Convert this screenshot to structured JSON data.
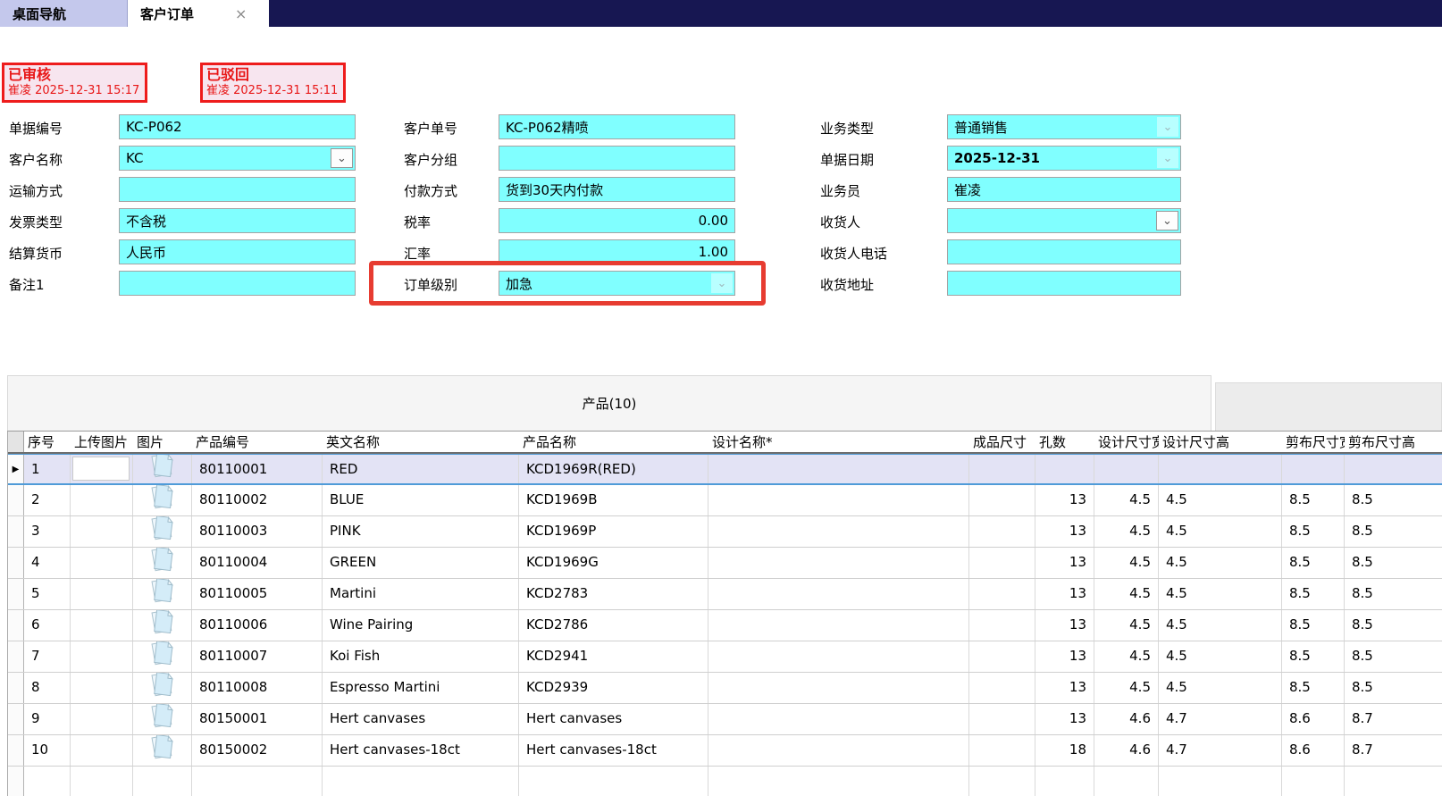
{
  "tabs": {
    "close_icon": "×",
    "items": [
      {
        "label": "桌面导航",
        "active": false
      },
      {
        "label": "客户订单",
        "active": true
      }
    ]
  },
  "stamps": [
    {
      "title": "已审核",
      "meta": "崔凌 2025-12-31 15:17"
    },
    {
      "title": "已驳回",
      "meta": "崔凌 2025-12-31 15:11"
    }
  ],
  "form": {
    "col1": [
      {
        "name": "doc-number",
        "label": "单据编号",
        "value": "KC-P062",
        "type": "input"
      },
      {
        "name": "customer-name",
        "label": "客户名称",
        "value": "KC",
        "type": "combo"
      },
      {
        "name": "transport-method",
        "label": "运输方式",
        "value": "",
        "type": "input"
      },
      {
        "name": "invoice-type",
        "label": "发票类型",
        "value": "不含税",
        "type": "input"
      },
      {
        "name": "settlement-currency",
        "label": "结算货币",
        "value": "人民币",
        "type": "input"
      },
      {
        "name": "remark-1",
        "label": "备注1",
        "value": "",
        "type": "input"
      }
    ],
    "col2": [
      {
        "name": "customer-order-no",
        "label": "客户单号",
        "value": "KC-P062精喷",
        "type": "input"
      },
      {
        "name": "customer-group",
        "label": "客户分组",
        "value": "",
        "type": "input"
      },
      {
        "name": "payment-method",
        "label": "付款方式",
        "value": "货到30天内付款",
        "type": "input"
      },
      {
        "name": "tax-rate",
        "label": "税率",
        "value": "0.00",
        "type": "input",
        "align": "right"
      },
      {
        "name": "exchange-rate",
        "label": "汇率",
        "value": "1.00",
        "type": "input",
        "align": "right"
      },
      {
        "name": "order-level",
        "label": "订单级别",
        "value": "加急",
        "type": "combo-flat",
        "highlighted": true
      }
    ],
    "col3": [
      {
        "name": "business-type",
        "label": "业务类型",
        "value": "普通销售",
        "type": "combo-flat"
      },
      {
        "name": "doc-date",
        "label": "单据日期",
        "value": "2025-12-31",
        "type": "combo-flat",
        "bold": true
      },
      {
        "name": "salesperson",
        "label": "业务员",
        "value": "崔凌",
        "type": "input"
      },
      {
        "name": "consignee",
        "label": "收货人",
        "value": "",
        "type": "combo"
      },
      {
        "name": "consignee-phone",
        "label": "收货人电话",
        "value": "",
        "type": "input"
      },
      {
        "name": "delivery-address",
        "label": "收货地址",
        "value": "",
        "type": "input"
      }
    ]
  },
  "products": {
    "tab_label": "产品(10)",
    "current_row_marker": "▶",
    "columns": [
      {
        "key": "no",
        "label": "序号"
      },
      {
        "key": "upload",
        "label": "上传图片"
      },
      {
        "key": "image",
        "label": "图片"
      },
      {
        "key": "code",
        "label": "产品编号"
      },
      {
        "key": "en",
        "label": "英文名称"
      },
      {
        "key": "name",
        "label": "产品名称"
      },
      {
        "key": "design",
        "label": "设计名称*"
      },
      {
        "key": "size",
        "label": "成品尺寸"
      },
      {
        "key": "holes",
        "label": "孔数"
      },
      {
        "key": "dw",
        "label": "设计尺寸宽"
      },
      {
        "key": "dh",
        "label": "设计尺寸高"
      },
      {
        "key": "cw",
        "label": "剪布尺寸宽"
      },
      {
        "key": "ch",
        "label": "剪布尺寸高"
      }
    ],
    "rows": [
      {
        "no": "1",
        "code": "80110001",
        "en": "RED",
        "name": "KCD1969R(RED)",
        "design": "",
        "size": "",
        "holes": "",
        "dw": "",
        "dh": "",
        "cw": "",
        "ch": "",
        "selected": true
      },
      {
        "no": "2",
        "code": "80110002",
        "en": "BLUE",
        "name": "KCD1969B",
        "design": "",
        "size": "",
        "holes": "13",
        "dw": "4.5",
        "dh": "4.5",
        "cw": "8.5",
        "ch": "8.5"
      },
      {
        "no": "3",
        "code": "80110003",
        "en": "PINK",
        "name": "KCD1969P",
        "design": "",
        "size": "",
        "holes": "13",
        "dw": "4.5",
        "dh": "4.5",
        "cw": "8.5",
        "ch": "8.5"
      },
      {
        "no": "4",
        "code": "80110004",
        "en": "GREEN",
        "name": "KCD1969G",
        "design": "",
        "size": "",
        "holes": "13",
        "dw": "4.5",
        "dh": "4.5",
        "cw": "8.5",
        "ch": "8.5"
      },
      {
        "no": "5",
        "code": "80110005",
        "en": "Martini",
        "name": "KCD2783",
        "design": "",
        "size": "",
        "holes": "13",
        "dw": "4.5",
        "dh": "4.5",
        "cw": "8.5",
        "ch": "8.5"
      },
      {
        "no": "6",
        "code": "80110006",
        "en": "Wine Pairing",
        "name": "KCD2786",
        "design": "",
        "size": "",
        "holes": "13",
        "dw": "4.5",
        "dh": "4.5",
        "cw": "8.5",
        "ch": "8.5"
      },
      {
        "no": "7",
        "code": "80110007",
        "en": "Koi Fish",
        "name": "KCD2941",
        "design": "",
        "size": "",
        "holes": "13",
        "dw": "4.5",
        "dh": "4.5",
        "cw": "8.5",
        "ch": "8.5"
      },
      {
        "no": "8",
        "code": "80110008",
        "en": "Espresso Martini",
        "name": "KCD2939",
        "design": "",
        "size": "",
        "holes": "13",
        "dw": "4.5",
        "dh": "4.5",
        "cw": "8.5",
        "ch": "8.5"
      },
      {
        "no": "9",
        "code": "80150001",
        "en": "Hert canvases",
        "name": "Hert canvases",
        "design": "",
        "size": "",
        "holes": "13",
        "dw": "4.6",
        "dh": "4.7",
        "cw": "8.6",
        "ch": "8.7"
      },
      {
        "no": "10",
        "code": "80150002",
        "en": "Hert canvases-18ct",
        "name": "Hert canvases-18ct",
        "design": "",
        "size": "",
        "holes": "18",
        "dw": "4.6",
        "dh": "4.7",
        "cw": "8.6",
        "ch": "8.7"
      }
    ]
  }
}
